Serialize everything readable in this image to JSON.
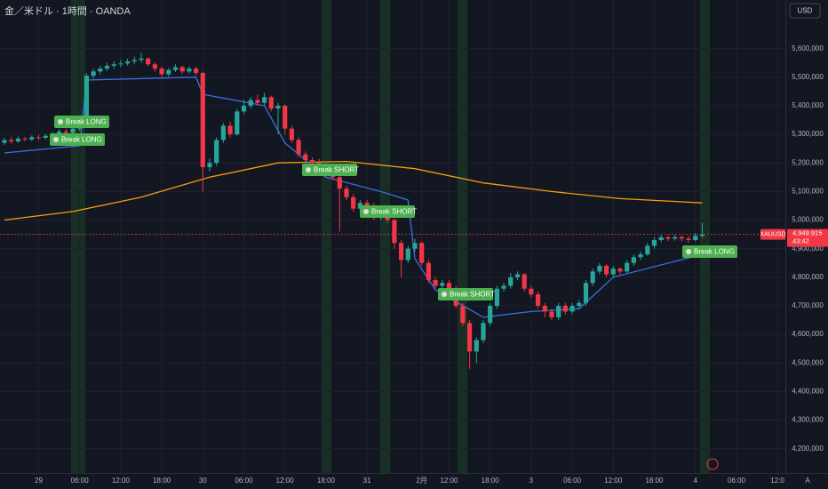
{
  "chart_data": {
    "type": "candlestick",
    "title": "金／米ドル · 1時間 · OANDA",
    "currency": "USD",
    "symbol": "XAUUSD",
    "last_price": {
      "value": 4949915,
      "label": "4,949.915"
    },
    "countdown": "43:42",
    "scale_mode": "A",
    "up_color": "#26a69a",
    "down_color": "#f23645",
    "ylim": [
      4115000,
      5770000
    ],
    "yticks": [
      {
        "value": 5600000,
        "label": "5,600,000"
      },
      {
        "value": 5500000,
        "label": "5,500,000"
      },
      {
        "value": 5400000,
        "label": "5,400,000"
      },
      {
        "value": 5300000,
        "label": "5,300,000"
      },
      {
        "value": 5200000,
        "label": "5,200,000"
      },
      {
        "value": 5100000,
        "label": "5,100,000"
      },
      {
        "value": 5000000,
        "label": "5,000,000"
      },
      {
        "value": 4900000,
        "label": "4,900,000"
      },
      {
        "value": 4800000,
        "label": "4,800,000"
      },
      {
        "value": 4700000,
        "label": "4,700,000"
      },
      {
        "value": 4600000,
        "label": "4,600,000"
      },
      {
        "value": 4500000,
        "label": "4,500,000"
      },
      {
        "value": 4400000,
        "label": "4,400,000"
      },
      {
        "value": 4300000,
        "label": "4,300,000"
      },
      {
        "value": 4200000,
        "label": "4,200,000"
      }
    ],
    "xticks": [
      {
        "value": 5,
        "label": "29"
      },
      {
        "value": 11,
        "label": "06:00"
      },
      {
        "value": 17,
        "label": "12:00"
      },
      {
        "value": 23,
        "label": "18:00"
      },
      {
        "value": 29,
        "label": "30"
      },
      {
        "value": 35,
        "label": "06:00"
      },
      {
        "value": 41,
        "label": "12:00"
      },
      {
        "value": 47,
        "label": "18:00"
      },
      {
        "value": 53,
        "label": "31"
      },
      {
        "value": 61,
        "label": "2月"
      },
      {
        "value": 65,
        "label": "12:00"
      },
      {
        "value": 71,
        "label": "18:00"
      },
      {
        "value": 77,
        "label": "3"
      },
      {
        "value": 83,
        "label": "06:00"
      },
      {
        "value": 89,
        "label": "12:00"
      },
      {
        "value": 95,
        "label": "18:00"
      },
      {
        "value": 101,
        "label": "4"
      },
      {
        "value": 107,
        "label": "06:00"
      },
      {
        "value": 113,
        "label": "12:0"
      }
    ],
    "grid": true,
    "candles": [
      [
        5270000,
        5288000,
        5262000,
        5280000
      ],
      [
        5280000,
        5290000,
        5268000,
        5275000
      ],
      [
        5275000,
        5292000,
        5270000,
        5285000
      ],
      [
        5285000,
        5292000,
        5276000,
        5282000
      ],
      [
        5282000,
        5296000,
        5276000,
        5290000
      ],
      [
        5290000,
        5297000,
        5280000,
        5288000
      ],
      [
        5288000,
        5302000,
        5282000,
        5295000
      ],
      [
        5295000,
        5308000,
        5288000,
        5300000
      ],
      [
        5300000,
        5318000,
        5294000,
        5310000
      ],
      [
        5310000,
        5320000,
        5296000,
        5305000
      ],
      [
        5305000,
        5330000,
        5298000,
        5320000
      ],
      [
        5320000,
        5345000,
        5312000,
        5335000
      ],
      [
        5335000,
        5515000,
        5330000,
        5505000
      ],
      [
        5505000,
        5530000,
        5495000,
        5520000
      ],
      [
        5520000,
        5540000,
        5510000,
        5530000
      ],
      [
        5530000,
        5550000,
        5522000,
        5540000
      ],
      [
        5540000,
        5556000,
        5530000,
        5545000
      ],
      [
        5545000,
        5560000,
        5535000,
        5548000
      ],
      [
        5548000,
        5565000,
        5540000,
        5555000
      ],
      [
        5555000,
        5572000,
        5545000,
        5560000
      ],
      [
        5560000,
        5585000,
        5550000,
        5565000
      ],
      [
        5565000,
        5570000,
        5538000,
        5545000
      ],
      [
        5545000,
        5552000,
        5520000,
        5530000
      ],
      [
        5530000,
        5538000,
        5500000,
        5510000
      ],
      [
        5510000,
        5532000,
        5502000,
        5525000
      ],
      [
        5525000,
        5545000,
        5518000,
        5535000
      ],
      [
        5535000,
        5540000,
        5512000,
        5520000
      ],
      [
        5520000,
        5538000,
        5512000,
        5530000
      ],
      [
        5530000,
        5536000,
        5505000,
        5515000
      ],
      [
        5515000,
        5520000,
        5100000,
        5185000
      ],
      [
        5185000,
        5215000,
        5170000,
        5200000
      ],
      [
        5200000,
        5290000,
        5190000,
        5280000
      ],
      [
        5280000,
        5340000,
        5270000,
        5330000
      ],
      [
        5330000,
        5345000,
        5290000,
        5300000
      ],
      [
        5300000,
        5390000,
        5295000,
        5380000
      ],
      [
        5380000,
        5420000,
        5370000,
        5400000
      ],
      [
        5400000,
        5430000,
        5390000,
        5420000
      ],
      [
        5420000,
        5440000,
        5400000,
        5410000
      ],
      [
        5410000,
        5445000,
        5400000,
        5430000
      ],
      [
        5430000,
        5435000,
        5380000,
        5390000
      ],
      [
        5390000,
        5410000,
        5300000,
        5400000
      ],
      [
        5400000,
        5405000,
        5300000,
        5320000
      ],
      [
        5320000,
        5330000,
        5270000,
        5280000
      ],
      [
        5280000,
        5290000,
        5220000,
        5230000
      ],
      [
        5230000,
        5240000,
        5200000,
        5210000
      ],
      [
        5210000,
        5220000,
        5190000,
        5200000
      ],
      [
        5200000,
        5215000,
        5180000,
        5190000
      ],
      [
        5190000,
        5200000,
        5160000,
        5170000
      ],
      [
        5170000,
        5180000,
        5140000,
        5150000
      ],
      [
        5150000,
        5160000,
        4960000,
        5110000
      ],
      [
        5110000,
        5120000,
        5070000,
        5080000
      ],
      [
        5080000,
        5090000,
        5030000,
        5040000
      ],
      [
        5040000,
        5070000,
        5030000,
        5060000
      ],
      [
        5060000,
        5070000,
        5040000,
        5050000
      ],
      [
        5050000,
        5060000,
        5000000,
        5010000
      ],
      [
        5010000,
        5050000,
        5000000,
        5040000
      ],
      [
        5040000,
        5045000,
        4990000,
        5000000
      ],
      [
        5000000,
        5005000,
        4900000,
        4920000
      ],
      [
        4920000,
        4930000,
        4800000,
        4860000
      ],
      [
        4860000,
        4910000,
        4850000,
        4900000
      ],
      [
        4900000,
        4935000,
        4890000,
        4920000
      ],
      [
        4920000,
        4925000,
        4840000,
        4850000
      ],
      [
        4850000,
        4860000,
        4780000,
        4790000
      ],
      [
        4790000,
        4800000,
        4760000,
        4770000
      ],
      [
        4770000,
        4790000,
        4760000,
        4780000
      ],
      [
        4780000,
        4790000,
        4750000,
        4760000
      ],
      [
        4760000,
        4770000,
        4690000,
        4700000
      ],
      [
        4700000,
        4710000,
        4630000,
        4640000
      ],
      [
        4640000,
        4650000,
        4480000,
        4540000
      ],
      [
        4540000,
        4590000,
        4500000,
        4580000
      ],
      [
        4580000,
        4650000,
        4570000,
        4640000
      ],
      [
        4640000,
        4710000,
        4630000,
        4700000
      ],
      [
        4700000,
        4770000,
        4690000,
        4760000
      ],
      [
        4760000,
        4780000,
        4750000,
        4770000
      ],
      [
        4770000,
        4815000,
        4760000,
        4800000
      ],
      [
        4800000,
        4820000,
        4790000,
        4810000
      ],
      [
        4810000,
        4815000,
        4750000,
        4760000
      ],
      [
        4760000,
        4770000,
        4730000,
        4740000
      ],
      [
        4740000,
        4750000,
        4690000,
        4700000
      ],
      [
        4700000,
        4710000,
        4660000,
        4680000
      ],
      [
        4680000,
        4690000,
        4650000,
        4660000
      ],
      [
        4660000,
        4710000,
        4650000,
        4700000
      ],
      [
        4700000,
        4710000,
        4670000,
        4680000
      ],
      [
        4680000,
        4710000,
        4670000,
        4700000
      ],
      [
        4700000,
        4720000,
        4690000,
        4710000
      ],
      [
        4710000,
        4790000,
        4700000,
        4780000
      ],
      [
        4780000,
        4830000,
        4770000,
        4820000
      ],
      [
        4820000,
        4850000,
        4810000,
        4840000
      ],
      [
        4840000,
        4845000,
        4800000,
        4810000
      ],
      [
        4810000,
        4840000,
        4800000,
        4830000
      ],
      [
        4830000,
        4835000,
        4810000,
        4820000
      ],
      [
        4820000,
        4860000,
        4815000,
        4850000
      ],
      [
        4850000,
        4880000,
        4840000,
        4870000
      ],
      [
        4870000,
        4890000,
        4860000,
        4880000
      ],
      [
        4880000,
        4920000,
        4875000,
        4910000
      ],
      [
        4910000,
        4940000,
        4900000,
        4930000
      ],
      [
        4930000,
        4948000,
        4922000,
        4940000
      ],
      [
        4940000,
        4946000,
        4926000,
        4935000
      ],
      [
        4935000,
        4948000,
        4928000,
        4940000
      ],
      [
        4940000,
        4946000,
        4926000,
        4935000
      ],
      [
        4935000,
        4944000,
        4920000,
        4930000
      ],
      [
        4930000,
        4955000,
        4925000,
        4945000
      ],
      [
        4945000,
        4990000,
        4938000,
        4949915
      ]
    ],
    "series": [
      {
        "color": "#f59e0b",
        "x": [
          0,
          10,
          20,
          30,
          40,
          50,
          60,
          70,
          80,
          90,
          102
        ],
        "values": [
          5000000,
          5030000,
          5080000,
          5150000,
          5200000,
          5205000,
          5180000,
          5130000,
          5100000,
          5075000,
          5060000
        ]
      },
      {
        "color": "#3b6fe0",
        "x": [
          0,
          11,
          12,
          28,
          29,
          38,
          41,
          47,
          55,
          59,
          60,
          63,
          70,
          77,
          84,
          89,
          102
        ],
        "values": [
          5235000,
          5260000,
          5490000,
          5500000,
          5440000,
          5400000,
          5270000,
          5150000,
          5100000,
          5070000,
          4865000,
          4756000,
          4660000,
          4680000,
          4690000,
          4800000,
          4880000
        ]
      }
    ],
    "annotations": [
      "Break LONG",
      "Break LONG",
      "Break SHORT",
      "Break SHORT",
      "Break SHORT",
      "Break LONG"
    ]
  }
}
